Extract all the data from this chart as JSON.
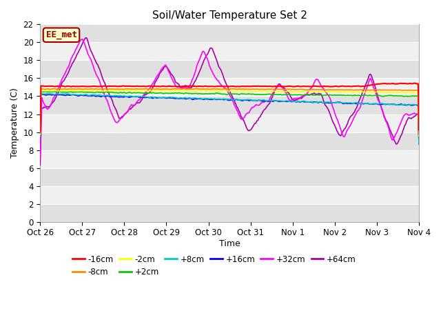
{
  "title": "Soil/Water Temperature Set 2",
  "xlabel": "Time",
  "ylabel": "Temperature (C)",
  "ylim": [
    0,
    22
  ],
  "yticks": [
    0,
    2,
    4,
    6,
    8,
    10,
    12,
    14,
    16,
    18,
    20,
    22
  ],
  "fig_bg": "#ffffff",
  "plot_bg_light": "#f0f0f0",
  "plot_bg_dark": "#e0e0e0",
  "annotation_text": "EE_met",
  "annotation_bg": "#ffffcc",
  "annotation_border": "#990000",
  "annotation_text_color": "#990000",
  "series_colors": {
    "-16cm": "#ff0000",
    "-8cm": "#ff8800",
    "-2cm": "#ffff00",
    "+2cm": "#00cc00",
    "+8cm": "#00cccc",
    "+16cm": "#0000ff",
    "+32cm": "#ff00ff",
    "+64cm": "#aa00aa"
  },
  "legend_labels": [
    "-16cm",
    "-8cm",
    "-2cm",
    "+2cm",
    "+8cm",
    "+16cm",
    "+32cm",
    "+64cm"
  ],
  "x_tick_labels": [
    "Oct 26",
    "Oct 27",
    "Oct 28",
    "Oct 29",
    "Oct 30",
    "Oct 31",
    "Nov 1",
    "Nov 2",
    "Nov 3",
    "Nov 4"
  ]
}
